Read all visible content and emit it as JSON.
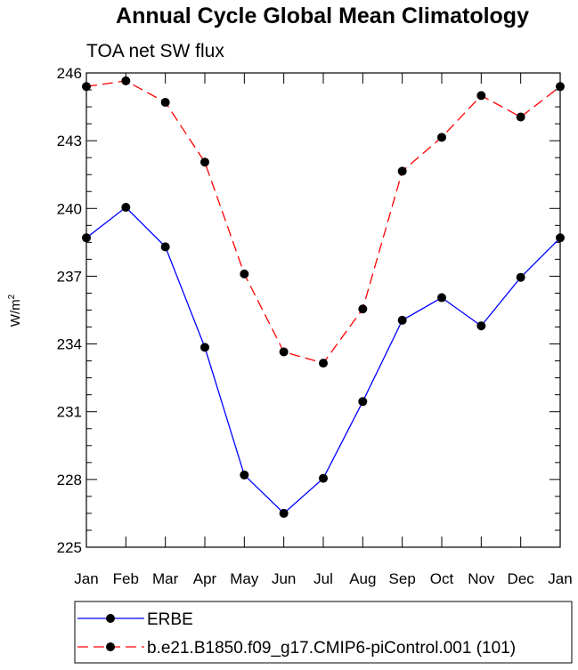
{
  "chart_data": {
    "type": "line",
    "title": "Annual Cycle Global Mean Climatology",
    "subtitle": "TOA net SW flux",
    "ylabel": "W/m",
    "ylabel_sup": "2",
    "xlabel": "",
    "categories": [
      "Jan",
      "Feb",
      "Mar",
      "Apr",
      "May",
      "Jun",
      "Jul",
      "Aug",
      "Sep",
      "Oct",
      "Nov",
      "Dec",
      "Jan"
    ],
    "ylim": [
      225,
      246
    ],
    "yticks": [
      225,
      228,
      231,
      234,
      237,
      240,
      243,
      246
    ],
    "grid": false,
    "legend_position": "bottom",
    "series": [
      {
        "name": "ERBE",
        "color": "#0000ff",
        "dash": "solid",
        "values": [
          238.7,
          240.05,
          238.3,
          233.85,
          228.2,
          226.5,
          228.05,
          231.45,
          235.05,
          236.05,
          234.8,
          236.95,
          238.7
        ]
      },
      {
        "name": "b.e21.B1850.f09_g17.CMIP6-piControl.001 (101)",
        "color": "#ff0000",
        "dash": "dashed",
        "values": [
          245.4,
          245.65,
          244.7,
          242.05,
          237.1,
          233.65,
          233.15,
          235.55,
          241.65,
          243.15,
          245.0,
          244.05,
          245.4
        ]
      }
    ]
  }
}
